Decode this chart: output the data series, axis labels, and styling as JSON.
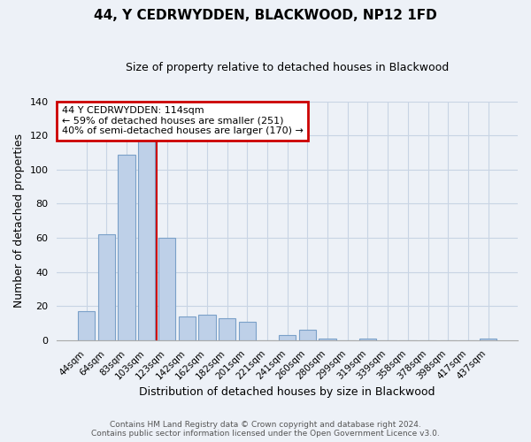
{
  "title": "44, Y CEDRWYDDEN, BLACKWOOD, NP12 1FD",
  "subtitle": "Size of property relative to detached houses in Blackwood",
  "xlabel": "Distribution of detached houses by size in Blackwood",
  "ylabel": "Number of detached properties",
  "bar_labels": [
    "44sqm",
    "64sqm",
    "83sqm",
    "103sqm",
    "123sqm",
    "142sqm",
    "162sqm",
    "182sqm",
    "201sqm",
    "221sqm",
    "241sqm",
    "260sqm",
    "280sqm",
    "299sqm",
    "319sqm",
    "339sqm",
    "358sqm",
    "378sqm",
    "398sqm",
    "417sqm",
    "437sqm"
  ],
  "bar_values": [
    17,
    62,
    109,
    117,
    60,
    14,
    15,
    13,
    11,
    0,
    3,
    6,
    1,
    0,
    1,
    0,
    0,
    0,
    0,
    0,
    1
  ],
  "bar_color": "#bed0e8",
  "bar_edgecolor": "#7aa0c8",
  "bar_linewidth": 0.8,
  "red_line_x": 4.5,
  "annotation_box_text": "44 Y CEDRWYDDEN: 114sqm\n← 59% of detached houses are smaller (251)\n40% of semi-detached houses are larger (170) →",
  "annotation_box_facecolor": "white",
  "annotation_box_edgecolor": "#cc0000",
  "ylim": [
    0,
    140
  ],
  "yticks": [
    0,
    20,
    40,
    60,
    80,
    100,
    120,
    140
  ],
  "footer_line1": "Contains HM Land Registry data © Crown copyright and database right 2024.",
  "footer_line2": "Contains public sector information licensed under the Open Government Licence v3.0.",
  "grid_color": "#c8d4e4",
  "background_color": "#edf1f7",
  "plot_bg_color": "#edf1f7"
}
